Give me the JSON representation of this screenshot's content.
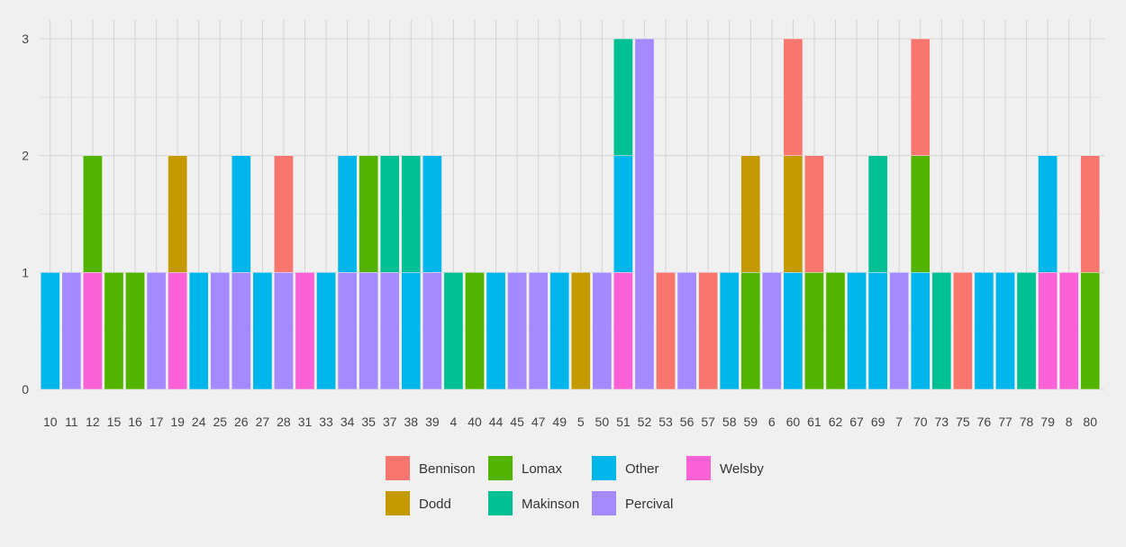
{
  "chart_data": {
    "type": "bar",
    "stacked": true,
    "categories": [
      "10",
      "11",
      "12",
      "15",
      "16",
      "17",
      "19",
      "24",
      "25",
      "26",
      "27",
      "28",
      "31",
      "33",
      "34",
      "35",
      "37",
      "38",
      "39",
      "4",
      "40",
      "44",
      "45",
      "47",
      "49",
      "5",
      "50",
      "51",
      "52",
      "53",
      "56",
      "57",
      "58",
      "59",
      "6",
      "60",
      "61",
      "62",
      "67",
      "69",
      "7",
      "70",
      "73",
      "75",
      "76",
      "77",
      "78",
      "79",
      "8",
      "80"
    ],
    "series": [
      {
        "name": "Bennison",
        "color": "#F8766D",
        "values": [
          0,
          0,
          0,
          0,
          0,
          0,
          0,
          0,
          0,
          0,
          0,
          1,
          0,
          0,
          0,
          0,
          0,
          0,
          0,
          0,
          0,
          0,
          0,
          0,
          0,
          0,
          0,
          0,
          0,
          1,
          0,
          1,
          0,
          0,
          0,
          1,
          1,
          0,
          0,
          0,
          0,
          1,
          0,
          1,
          0,
          0,
          0,
          0,
          0,
          1
        ]
      },
      {
        "name": "Dodd",
        "color": "#C49A00",
        "values": [
          0,
          0,
          0,
          0,
          0,
          0,
          1,
          0,
          0,
          0,
          0,
          0,
          0,
          0,
          0,
          0,
          0,
          0,
          0,
          0,
          0,
          0,
          0,
          0,
          0,
          1,
          0,
          0,
          0,
          0,
          0,
          0,
          0,
          1,
          0,
          1,
          0,
          0,
          0,
          0,
          0,
          0,
          0,
          0,
          0,
          0,
          0,
          0,
          0,
          0
        ]
      },
      {
        "name": "Lomax",
        "color": "#53B400",
        "values": [
          0,
          0,
          1,
          1,
          1,
          0,
          0,
          0,
          0,
          0,
          0,
          0,
          0,
          0,
          0,
          1,
          0,
          0,
          0,
          0,
          1,
          0,
          0,
          0,
          0,
          0,
          0,
          0,
          0,
          0,
          0,
          0,
          0,
          1,
          0,
          0,
          1,
          1,
          0,
          0,
          0,
          1,
          0,
          0,
          0,
          0,
          0,
          0,
          0,
          1
        ]
      },
      {
        "name": "Makinson",
        "color": "#00C094",
        "values": [
          0,
          0,
          0,
          0,
          0,
          0,
          0,
          0,
          0,
          0,
          0,
          0,
          0,
          0,
          0,
          0,
          1,
          1,
          0,
          1,
          0,
          0,
          0,
          0,
          0,
          0,
          0,
          1,
          0,
          0,
          0,
          0,
          0,
          0,
          0,
          0,
          0,
          0,
          0,
          1,
          0,
          0,
          1,
          0,
          0,
          0,
          1,
          0,
          0,
          0
        ]
      },
      {
        "name": "Other",
        "color": "#00B6EB",
        "values": [
          1,
          0,
          0,
          0,
          0,
          0,
          0,
          1,
          0,
          1,
          1,
          0,
          0,
          1,
          1,
          0,
          0,
          1,
          1,
          0,
          0,
          1,
          0,
          0,
          1,
          0,
          0,
          1,
          0,
          0,
          0,
          0,
          1,
          0,
          0,
          1,
          0,
          0,
          1,
          1,
          0,
          1,
          0,
          0,
          1,
          1,
          0,
          1,
          0,
          0
        ]
      },
      {
        "name": "Percival",
        "color": "#A58AFF",
        "values": [
          0,
          1,
          0,
          0,
          0,
          1,
          0,
          0,
          1,
          1,
          0,
          1,
          0,
          0,
          1,
          1,
          1,
          0,
          1,
          0,
          0,
          0,
          1,
          1,
          0,
          0,
          1,
          0,
          3,
          0,
          1,
          0,
          0,
          0,
          1,
          0,
          0,
          0,
          0,
          0,
          1,
          0,
          0,
          0,
          0,
          0,
          0,
          0,
          0,
          0
        ]
      },
      {
        "name": "Welsby",
        "color": "#FB61D7",
        "values": [
          0,
          0,
          1,
          0,
          0,
          0,
          1,
          0,
          0,
          0,
          0,
          0,
          1,
          0,
          0,
          0,
          0,
          0,
          0,
          0,
          0,
          0,
          0,
          0,
          0,
          0,
          0,
          1,
          0,
          0,
          0,
          0,
          0,
          0,
          0,
          0,
          0,
          0,
          0,
          0,
          0,
          0,
          0,
          0,
          0,
          0,
          0,
          1,
          1,
          0
        ]
      }
    ],
    "stack_order": [
      "Percival",
      "Welsby",
      "Other",
      "Makinson",
      "Lomax",
      "Dodd",
      "Bennison"
    ],
    "ylim": [
      0,
      3
    ],
    "yticks": [
      0,
      1,
      2,
      3
    ],
    "grid": true,
    "legend_position": "bottom",
    "title": "",
    "xlabel": "",
    "ylabel": ""
  }
}
